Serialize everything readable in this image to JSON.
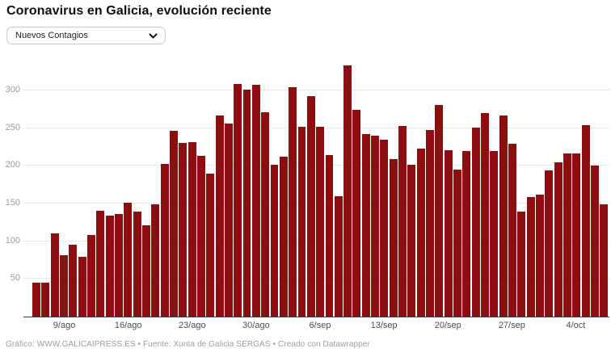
{
  "header": {
    "title": "Coronavirus en Galicia, evolución reciente"
  },
  "controls": {
    "metric_select": {
      "value": "Nuevos Contagios",
      "icon": "chevron-down-icon"
    }
  },
  "chart_data": {
    "type": "bar",
    "title": "Coronavirus en Galicia, evolución reciente",
    "series_label": "Nuevos Contagios",
    "bar_color": "#8b0f0f",
    "grid": true,
    "legend": "none",
    "ylim": [
      0,
      345
    ],
    "y_ticks": [
      50,
      100,
      150,
      200,
      250,
      300
    ],
    "x_ticks": [
      {
        "label": "9/ago",
        "index": 3
      },
      {
        "label": "16/ago",
        "index": 10
      },
      {
        "label": "23/ago",
        "index": 17
      },
      {
        "label": "30/ago",
        "index": 24
      },
      {
        "label": "6/sep",
        "index": 31
      },
      {
        "label": "13/sep",
        "index": 38
      },
      {
        "label": "20/sep",
        "index": 45
      },
      {
        "label": "27/sep",
        "index": 52
      },
      {
        "label": "4/oct",
        "index": 59
      }
    ],
    "values": [
      45,
      45,
      110,
      82,
      95,
      79,
      108,
      140,
      134,
      136,
      151,
      139,
      121,
      149,
      203,
      247,
      230,
      232,
      213,
      190,
      267,
      256,
      309,
      301,
      308,
      271,
      201,
      212,
      304,
      252,
      293,
      252,
      214,
      160,
      333,
      274,
      242,
      240,
      235,
      209,
      253,
      201,
      223,
      248,
      281,
      221,
      195,
      220,
      251,
      270,
      220,
      267,
      229,
      139,
      159,
      162,
      194,
      205,
      216,
      217,
      254,
      200,
      149
    ]
  },
  "footer": {
    "credit": "Gráfico: WWW.GALICAIPRESS.ES • Fuente: Xunta de Galicia SERGAS • Creado con Datawrapper"
  }
}
